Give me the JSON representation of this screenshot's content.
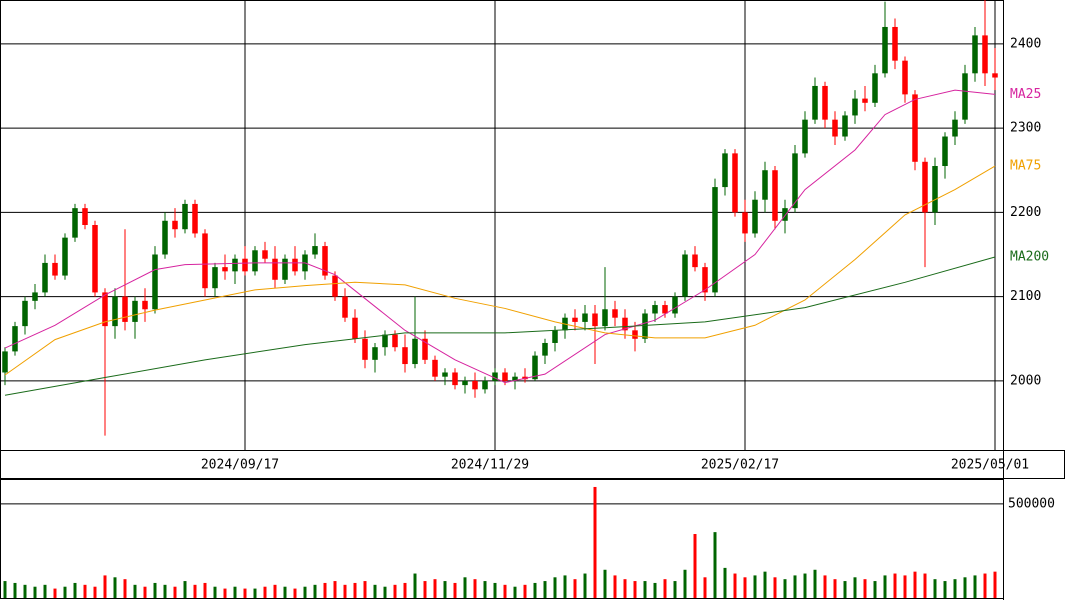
{
  "chart_data": {
    "type": "candlestick",
    "up_color": "#006400",
    "down_color": "#ff0000",
    "xlim": [
      -0.5,
      99.8
    ],
    "xticks": [
      {
        "value": 24,
        "label": "2024/09/17"
      },
      {
        "value": 49,
        "label": "2024/11/29"
      },
      {
        "value": 74,
        "label": "2025/02/17"
      },
      {
        "value": 99,
        "label": "2025/05/01"
      }
    ],
    "ylim": [
      1918,
      2452
    ],
    "yticks": [
      2000,
      2100,
      2200,
      2300,
      2400
    ],
    "volume_ylim": [
      0,
      627000
    ],
    "volume_yticks": [
      500000
    ],
    "ohlc": [
      [
        2010,
        2040,
        1995,
        2035
      ],
      [
        2035,
        2070,
        2030,
        2065
      ],
      [
        2065,
        2100,
        2055,
        2095
      ],
      [
        2095,
        2115,
        2085,
        2105
      ],
      [
        2105,
        2150,
        2100,
        2140
      ],
      [
        2140,
        2150,
        2120,
        2125
      ],
      [
        2125,
        2175,
        2120,
        2170
      ],
      [
        2170,
        2210,
        2165,
        2205
      ],
      [
        2205,
        2210,
        2180,
        2185
      ],
      [
        2185,
        2190,
        2100,
        2105
      ],
      [
        2105,
        2110,
        1935,
        2065
      ],
      [
        2065,
        2110,
        2050,
        2100
      ],
      [
        2100,
        2180,
        2060,
        2070
      ],
      [
        2070,
        2100,
        2050,
        2095
      ],
      [
        2095,
        2110,
        2070,
        2085
      ],
      [
        2085,
        2160,
        2080,
        2150
      ],
      [
        2150,
        2200,
        2145,
        2190
      ],
      [
        2190,
        2205,
        2170,
        2180
      ],
      [
        2180,
        2215,
        2175,
        2210
      ],
      [
        2210,
        2215,
        2170,
        2175
      ],
      [
        2175,
        2180,
        2100,
        2110
      ],
      [
        2110,
        2140,
        2100,
        2135
      ],
      [
        2135,
        2150,
        2120,
        2130
      ],
      [
        2130,
        2150,
        2115,
        2145
      ],
      [
        2145,
        2160,
        2125,
        2130
      ],
      [
        2130,
        2160,
        2125,
        2155
      ],
      [
        2155,
        2165,
        2140,
        2145
      ],
      [
        2145,
        2160,
        2110,
        2120
      ],
      [
        2120,
        2150,
        2115,
        2145
      ],
      [
        2145,
        2160,
        2125,
        2130
      ],
      [
        2130,
        2155,
        2120,
        2150
      ],
      [
        2150,
        2175,
        2145,
        2160
      ],
      [
        2160,
        2165,
        2120,
        2125
      ],
      [
        2125,
        2130,
        2095,
        2100
      ],
      [
        2100,
        2110,
        2070,
        2075
      ],
      [
        2075,
        2085,
        2045,
        2050
      ],
      [
        2050,
        2060,
        2015,
        2025
      ],
      [
        2025,
        2045,
        2010,
        2040
      ],
      [
        2040,
        2060,
        2030,
        2055
      ],
      [
        2055,
        2060,
        2035,
        2040
      ],
      [
        2040,
        2055,
        2010,
        2020
      ],
      [
        2020,
        2100,
        2015,
        2050
      ],
      [
        2050,
        2060,
        2020,
        2025
      ],
      [
        2025,
        2030,
        2000,
        2005
      ],
      [
        2005,
        2015,
        1995,
        2010
      ],
      [
        2010,
        2015,
        1990,
        1995
      ],
      [
        1995,
        2005,
        1985,
        2000
      ],
      [
        2000,
        2010,
        1980,
        1990
      ],
      [
        1990,
        2005,
        1985,
        2000
      ],
      [
        2000,
        2015,
        1995,
        2010
      ],
      [
        2010,
        2015,
        1995,
        2000
      ],
      [
        2000,
        2010,
        1990,
        2005
      ],
      [
        2005,
        2015,
        1998,
        2002
      ],
      [
        2002,
        2035,
        2000,
        2030
      ],
      [
        2030,
        2050,
        2020,
        2045
      ],
      [
        2045,
        2065,
        2035,
        2060
      ],
      [
        2060,
        2080,
        2050,
        2075
      ],
      [
        2075,
        2085,
        2060,
        2070
      ],
      [
        2070,
        2090,
        2060,
        2080
      ],
      [
        2080,
        2090,
        2020,
        2065
      ],
      [
        2065,
        2135,
        2060,
        2085
      ],
      [
        2085,
        2095,
        2065,
        2075
      ],
      [
        2075,
        2085,
        2050,
        2060
      ],
      [
        2060,
        2070,
        2035,
        2050
      ],
      [
        2050,
        2085,
        2045,
        2080
      ],
      [
        2080,
        2095,
        2070,
        2090
      ],
      [
        2090,
        2095,
        2075,
        2080
      ],
      [
        2080,
        2105,
        2075,
        2100
      ],
      [
        2100,
        2155,
        2095,
        2150
      ],
      [
        2150,
        2160,
        2130,
        2135
      ],
      [
        2135,
        2140,
        2095,
        2105
      ],
      [
        2105,
        2240,
        2100,
        2230
      ],
      [
        2230,
        2275,
        2220,
        2270
      ],
      [
        2270,
        2275,
        2195,
        2200
      ],
      [
        2200,
        2215,
        2165,
        2175
      ],
      [
        2175,
        2225,
        2170,
        2215
      ],
      [
        2215,
        2260,
        2200,
        2250
      ],
      [
        2250,
        2255,
        2180,
        2190
      ],
      [
        2190,
        2215,
        2175,
        2205
      ],
      [
        2205,
        2280,
        2200,
        2270
      ],
      [
        2270,
        2320,
        2265,
        2310
      ],
      [
        2310,
        2360,
        2305,
        2350
      ],
      [
        2350,
        2355,
        2300,
        2310
      ],
      [
        2310,
        2320,
        2280,
        2290
      ],
      [
        2290,
        2320,
        2285,
        2315
      ],
      [
        2315,
        2345,
        2305,
        2335
      ],
      [
        2335,
        2350,
        2320,
        2330
      ],
      [
        2330,
        2375,
        2325,
        2365
      ],
      [
        2365,
        2450,
        2360,
        2420
      ],
      [
        2420,
        2430,
        2370,
        2380
      ],
      [
        2380,
        2385,
        2330,
        2340
      ],
      [
        2340,
        2345,
        2250,
        2260
      ],
      [
        2260,
        2265,
        2135,
        2200
      ],
      [
        2200,
        2265,
        2185,
        2255
      ],
      [
        2255,
        2295,
        2240,
        2290
      ],
      [
        2290,
        2320,
        2280,
        2310
      ],
      [
        2310,
        2375,
        2305,
        2365
      ],
      [
        2365,
        2420,
        2355,
        2410
      ],
      [
        2410,
        2460,
        2350,
        2365
      ],
      [
        2365,
        2395,
        2345,
        2360
      ]
    ],
    "volume": [
      90000,
      80000,
      70000,
      60000,
      70000,
      50000,
      60000,
      80000,
      70000,
      60000,
      120000,
      110000,
      100000,
      70000,
      60000,
      80000,
      70000,
      60000,
      90000,
      70000,
      80000,
      60000,
      50000,
      60000,
      50000,
      50000,
      60000,
      70000,
      60000,
      50000,
      60000,
      70000,
      80000,
      90000,
      70000,
      80000,
      90000,
      70000,
      60000,
      70000,
      80000,
      130000,
      90000,
      100000,
      90000,
      80000,
      110000,
      100000,
      90000,
      80000,
      70000,
      60000,
      70000,
      80000,
      90000,
      110000,
      120000,
      100000,
      130000,
      590000,
      150000,
      120000,
      100000,
      90000,
      90000,
      80000,
      100000,
      90000,
      150000,
      340000,
      110000,
      350000,
      160000,
      130000,
      110000,
      120000,
      140000,
      110000,
      100000,
      120000,
      130000,
      150000,
      120000,
      100000,
      90000,
      110000,
      100000,
      90000,
      120000,
      130000,
      120000,
      140000,
      130000,
      100000,
      90000,
      100000,
      110000,
      120000,
      130000,
      140000
    ],
    "ma": [
      {
        "name": "MA25",
        "color": "#d6249f",
        "x": [
          0,
          5,
          10,
          15,
          18,
          25,
          30,
          33,
          40,
          45,
          50,
          54,
          60,
          65,
          70,
          75,
          80,
          85,
          88,
          91,
          95,
          99
        ],
        "values": [
          2039,
          2066,
          2102,
          2132,
          2138,
          2140,
          2140,
          2126,
          2060,
          2025,
          1998,
          2008,
          2055,
          2072,
          2108,
          2150,
          2227,
          2274,
          2316,
          2334,
          2345,
          2340
        ]
      },
      {
        "name": "MA75",
        "color": "#f0a000",
        "x": [
          0,
          5,
          10,
          15,
          20,
          25,
          30,
          35,
          40,
          45,
          50,
          55,
          60,
          65,
          70,
          75,
          80,
          85,
          90,
          95,
          99
        ],
        "values": [
          2007,
          2049,
          2070,
          2084,
          2096,
          2108,
          2113,
          2117,
          2114,
          2098,
          2086,
          2070,
          2057,
          2051,
          2051,
          2066,
          2096,
          2144,
          2197,
          2227,
          2255
        ]
      },
      {
        "name": "MA200",
        "color": "#1a6b1a",
        "x": [
          0,
          10,
          20,
          30,
          40,
          50,
          60,
          70,
          80,
          90,
          99
        ],
        "values": [
          1983,
          2004,
          2025,
          2043,
          2057,
          2057,
          2063,
          2070,
          2087,
          2117,
          2147
        ]
      }
    ]
  }
}
